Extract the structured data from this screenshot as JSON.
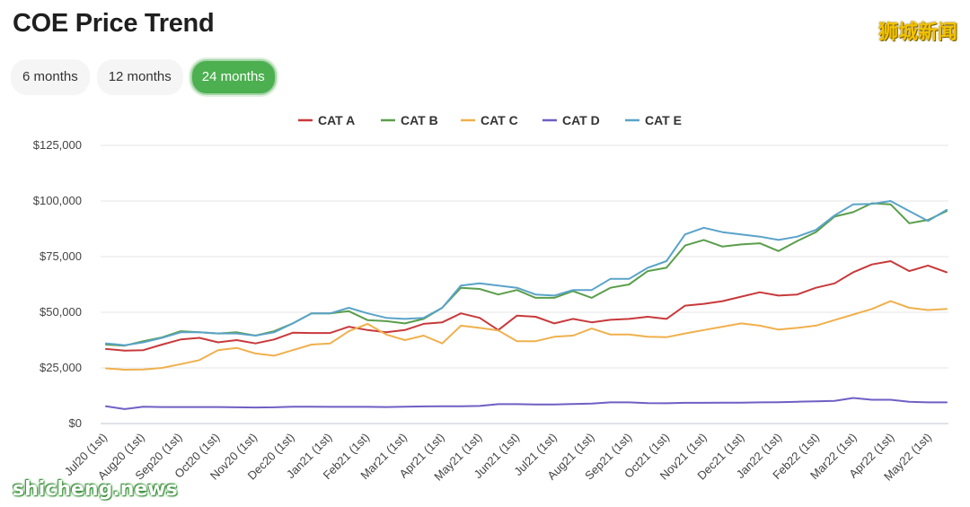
{
  "title": "COE Price Trend",
  "watermark_top": "狮城新闻",
  "watermark_bottom": "shicheng.news",
  "range_tabs": [
    {
      "label": "6 months",
      "active": false
    },
    {
      "label": "12 months",
      "active": false
    },
    {
      "label": "24 months",
      "active": true
    }
  ],
  "chart_data": {
    "type": "line",
    "ylim": [
      0,
      125000
    ],
    "yticks": [
      0,
      25000,
      50000,
      75000,
      100000,
      125000
    ],
    "ytick_labels": [
      "$0",
      "$25,000",
      "$50,000",
      "$75,000",
      "$100,000",
      "$125,000"
    ],
    "legend_position": "top",
    "grid": true,
    "x_tick_labels": [
      "Jul20 (1st)",
      "Aug20 (1st)",
      "Sep20 (1st)",
      "Oct20 (1st)",
      "Nov20 (1st)",
      "Dec20 (1st)",
      "Jan21 (1st)",
      "Feb21 (1st)",
      "Mar21 (1st)",
      "Apr21 (1st)",
      "May21 (1st)",
      "Jun21 (1st)",
      "Jul21 (1st)",
      "Aug21 (1st)",
      "Sep21 (1st)",
      "Oct21 (1st)",
      "Nov21 (1st)",
      "Dec21 (1st)",
      "Jan22 (1st)",
      "Feb22 (1st)",
      "Mar22 (1st)",
      "Apr22 (1st)",
      "May22 (1st)"
    ],
    "series": [
      {
        "name": "CAT A",
        "color": "#c8393b",
        "values": [
          33500,
          32800,
          33000,
          35500,
          37800,
          38500,
          36500,
          37500,
          36000,
          37800,
          40800,
          40700,
          40700,
          43500,
          42000,
          41000,
          42000,
          44800,
          45500,
          49500,
          47500,
          42000,
          48500,
          48000,
          45000,
          47000,
          45500,
          46600,
          47000,
          48000,
          47000,
          53000,
          53800,
          55000,
          57000,
          59000,
          57500,
          58000,
          61000,
          63000,
          68000,
          71500,
          73000,
          68500,
          71000,
          68000
        ]
      },
      {
        "name": "CAT B",
        "color": "#5a9e4b",
        "values": [
          35500,
          35000,
          37000,
          38700,
          41500,
          41000,
          40500,
          41000,
          39500,
          41500,
          45000,
          49500,
          49500,
          50500,
          46500,
          46000,
          45000,
          47000,
          52000,
          61000,
          60500,
          58000,
          60000,
          56500,
          56500,
          59500,
          56500,
          61000,
          62500,
          68500,
          70000,
          80000,
          82500,
          79500,
          80500,
          81000,
          77500,
          82000,
          86000,
          93000,
          95000,
          99000,
          98500,
          90000,
          91500,
          95500
        ]
      },
      {
        "name": "CAT C",
        "color": "#f0b04c",
        "values": [
          24800,
          24200,
          24300,
          25000,
          26700,
          28500,
          33000,
          34000,
          31500,
          30500,
          33000,
          35500,
          36000,
          41500,
          44800,
          40000,
          37500,
          39500,
          36000,
          44000,
          43000,
          41800,
          37000,
          37000,
          39000,
          39500,
          42700,
          40000,
          40000,
          39000,
          38800,
          40500,
          42000,
          43500,
          45000,
          44000,
          42200,
          43000,
          44000,
          46500,
          49000,
          51500,
          55000,
          52000,
          51000,
          51500
        ]
      },
      {
        "name": "CAT D",
        "color": "#6f5fc4",
        "values": [
          7800,
          6500,
          7600,
          7400,
          7400,
          7400,
          7400,
          7300,
          7200,
          7300,
          7600,
          7600,
          7500,
          7500,
          7500,
          7400,
          7600,
          7700,
          7800,
          7800,
          7900,
          8700,
          8700,
          8600,
          8600,
          8800,
          9000,
          9500,
          9500,
          9200,
          9100,
          9300,
          9300,
          9400,
          9400,
          9500,
          9600,
          9800,
          10000,
          10200,
          11500,
          10700,
          10700,
          9800,
          9500,
          9500
        ]
      },
      {
        "name": "CAT E",
        "color": "#5aa3c9",
        "values": [
          36000,
          35200,
          36500,
          38500,
          41000,
          41000,
          40500,
          40500,
          39500,
          41000,
          45000,
          49500,
          49500,
          52000,
          49500,
          47500,
          47000,
          47500,
          52000,
          62000,
          63000,
          62000,
          61000,
          58000,
          57500,
          60000,
          60000,
          65000,
          65000,
          70000,
          73000,
          85000,
          88000,
          86000,
          85000,
          84000,
          82500,
          84000,
          87000,
          93500,
          98500,
          98700,
          100000,
          95500,
          91000,
          96000
        ]
      }
    ]
  }
}
